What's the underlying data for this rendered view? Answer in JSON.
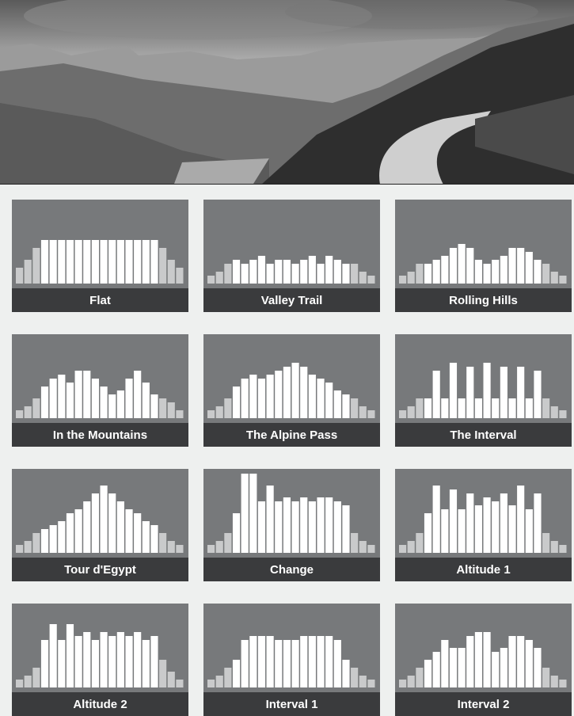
{
  "programs": [
    {
      "label": "Flat",
      "levels": [
        4,
        6,
        9,
        11,
        11,
        11,
        11,
        11,
        11,
        11,
        11,
        11,
        11,
        11,
        11,
        11,
        11,
        9,
        6,
        4
      ]
    },
    {
      "label": "Valley Trail",
      "levels": [
        2,
        3,
        5,
        6,
        5,
        6,
        7,
        5,
        6,
        6,
        5,
        6,
        7,
        5,
        7,
        6,
        5,
        5,
        3,
        2
      ]
    },
    {
      "label": "Rolling Hills",
      "levels": [
        2,
        3,
        5,
        5,
        6,
        7,
        9,
        10,
        9,
        6,
        5,
        6,
        7,
        9,
        9,
        8,
        6,
        5,
        3,
        2
      ]
    },
    {
      "label": "In the Mountains",
      "levels": [
        2,
        3,
        5,
        8,
        10,
        11,
        9,
        12,
        12,
        10,
        8,
        6,
        7,
        10,
        12,
        9,
        6,
        5,
        4,
        2
      ]
    },
    {
      "label": "The Alpine Pass",
      "levels": [
        2,
        3,
        5,
        8,
        10,
        11,
        10,
        11,
        12,
        13,
        14,
        13,
        11,
        10,
        9,
        7,
        6,
        5,
        3,
        2
      ]
    },
    {
      "label": "The Interval",
      "levels": [
        2,
        3,
        5,
        5,
        12,
        5,
        14,
        5,
        13,
        5,
        14,
        5,
        13,
        5,
        13,
        5,
        12,
        5,
        3,
        2
      ]
    },
    {
      "label": "Tour d'Egypt",
      "levels": [
        2,
        3,
        5,
        6,
        7,
        8,
        10,
        11,
        13,
        15,
        17,
        15,
        13,
        11,
        10,
        8,
        7,
        5,
        3,
        2
      ]
    },
    {
      "label": "Change",
      "levels": [
        2,
        3,
        5,
        10,
        20,
        20,
        13,
        17,
        13,
        14,
        13,
        14,
        13,
        14,
        14,
        13,
        12,
        5,
        3,
        2
      ]
    },
    {
      "label": "Altitude 1",
      "levels": [
        2,
        3,
        5,
        10,
        17,
        11,
        16,
        11,
        15,
        12,
        14,
        13,
        15,
        12,
        17,
        11,
        15,
        5,
        3,
        2
      ]
    },
    {
      "label": "Altitude 2",
      "levels": [
        2,
        3,
        5,
        12,
        16,
        12,
        16,
        13,
        14,
        12,
        14,
        13,
        14,
        13,
        14,
        12,
        13,
        7,
        4,
        2
      ]
    },
    {
      "label": "Interval 1",
      "levels": [
        2,
        3,
        5,
        7,
        12,
        13,
        13,
        13,
        12,
        12,
        12,
        13,
        13,
        13,
        13,
        12,
        7,
        5,
        3,
        2
      ]
    },
    {
      "label": "Interval 2",
      "levels": [
        2,
        3,
        5,
        7,
        9,
        12,
        10,
        10,
        13,
        14,
        14,
        9,
        10,
        13,
        13,
        12,
        10,
        5,
        3,
        2
      ]
    }
  ]
}
